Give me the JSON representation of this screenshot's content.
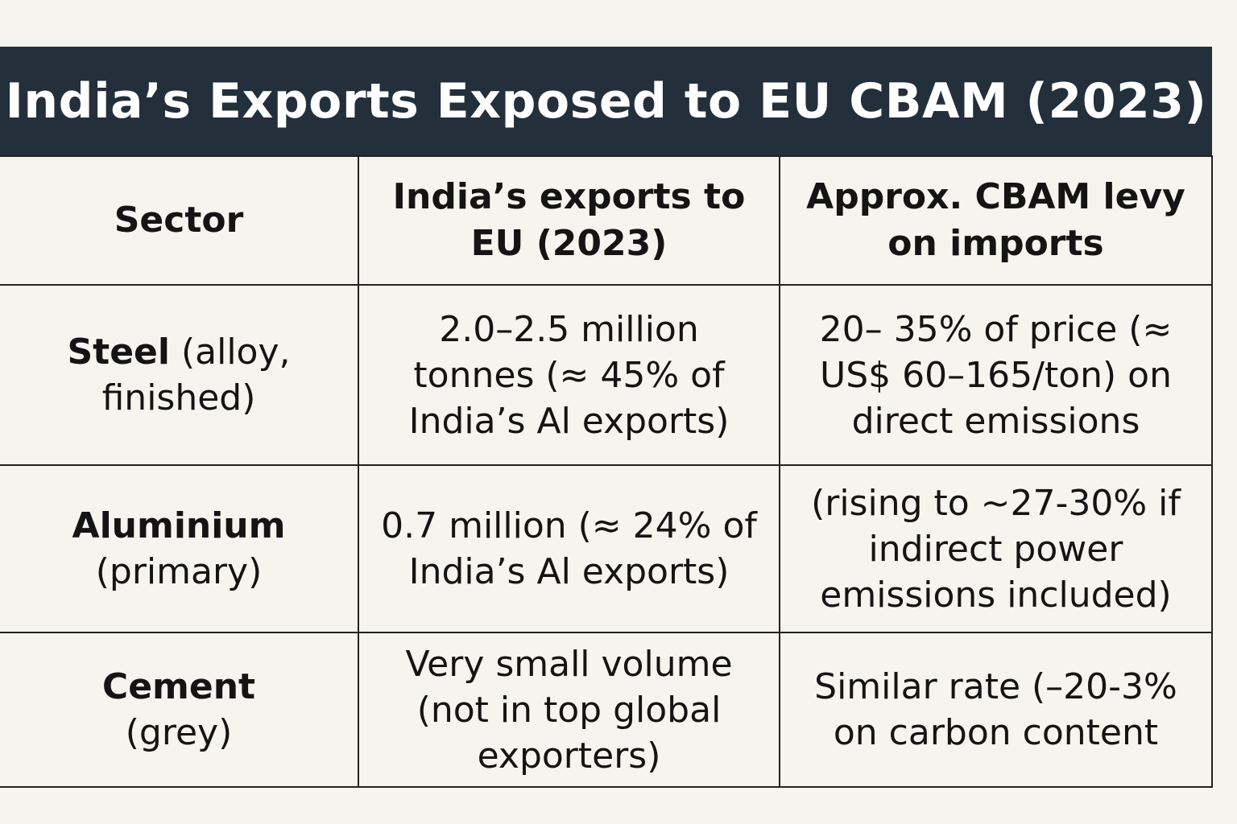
{
  "title": "India’s Exports Exposed to EU CBAM (2023)",
  "table": {
    "headers": [
      "Sector",
      "India’s exports to EU (2023)",
      "Approx. CBAM levy on imports"
    ],
    "rows": [
      {
        "sector_bold": "Steel",
        "sector_rest": " (alloy, finished)",
        "exports": "2.0–2.5 million tonnes (≈ 45% of India’s Al exports)",
        "levy": "20– 35% of price (≈ US$ 60–165/ton) on direct emissions"
      },
      {
        "sector_bold": "Aluminium",
        "sector_rest": "(primary)",
        "exports": "0.7 million (≈ 24% of India’s Al exports)",
        "levy": "(rising to ~27-30% if indirect power emissions included)"
      },
      {
        "sector_bold": "Cement",
        "sector_rest": "(grey)",
        "exports": "Very small volume (not in top global exporters)",
        "levy": "Similar rate (–20-3% on carbon content"
      }
    ]
  }
}
